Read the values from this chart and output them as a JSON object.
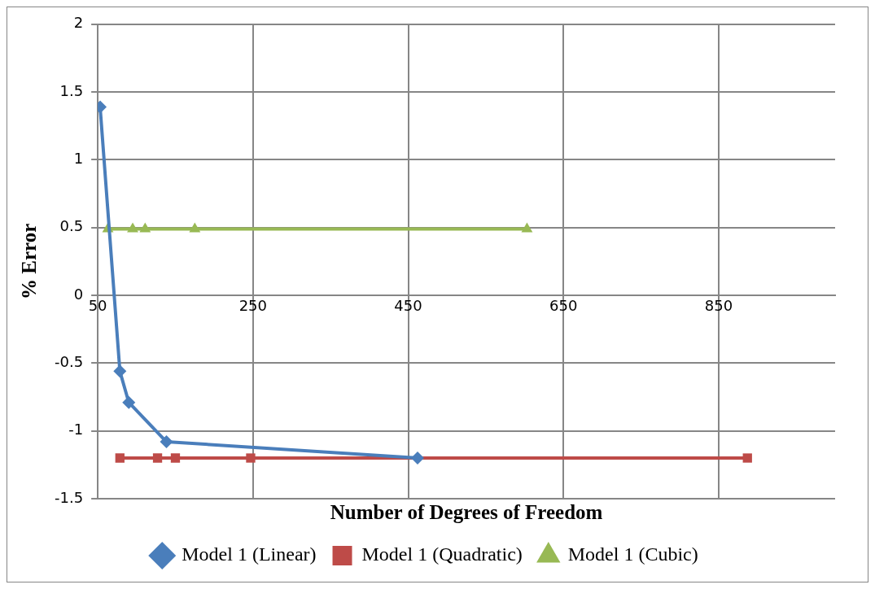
{
  "chart_data": {
    "type": "line",
    "xlabel": "Number of Degrees of Freedom",
    "ylabel": "% Error",
    "xlim": [
      50,
      1000
    ],
    "xticks": [
      50,
      250,
      450,
      650,
      850
    ],
    "ylim": [
      -1.5,
      2
    ],
    "yticks": [
      -1.5,
      -1,
      -0.5,
      0,
      0.5,
      1,
      1.5,
      2
    ],
    "grid": true,
    "legend": "bottom",
    "line_style": "solid",
    "series": [
      {
        "name": "Model 1 (Linear)",
        "color": "#4a7ebb",
        "marker": "diamond",
        "x": [
          53,
          78.5,
          90,
          138.5,
          462
        ],
        "values": [
          1.39,
          -0.56,
          -0.79,
          -1.08,
          -1.2
        ]
      },
      {
        "name": "Model 1 (Quadratic)",
        "color": "#be4b48",
        "marker": "square",
        "x": [
          78.5,
          127,
          150,
          247,
          887
        ],
        "values": [
          -1.2,
          -1.2,
          -1.2,
          -1.2,
          -1.2
        ]
      },
      {
        "name": "Model 1 (Cubic)",
        "color": "#98b954",
        "marker": "triangle",
        "x": [
          63,
          95,
          111,
          175,
          603
        ],
        "values": [
          0.49,
          0.49,
          0.49,
          0.49,
          0.49
        ]
      }
    ]
  }
}
